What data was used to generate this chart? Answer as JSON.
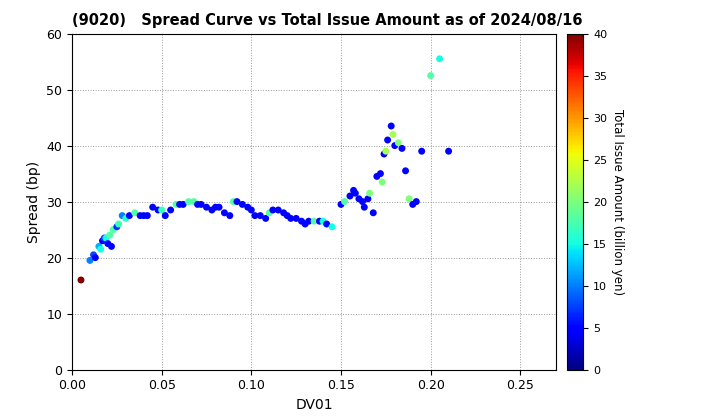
{
  "title": "(9020)   Spread Curve vs Total Issue Amount as of 2024/08/16",
  "xlabel": "DV01",
  "ylabel": "Spread (bp)",
  "colorbar_label": "Total Issue Amount (billion yen)",
  "xlim": [
    0,
    0.27
  ],
  "ylim": [
    0,
    60
  ],
  "xticks": [
    0.0,
    0.05,
    0.1,
    0.15,
    0.2,
    0.25
  ],
  "yticks": [
    0,
    10,
    20,
    30,
    40,
    50,
    60
  ],
  "colorbar_min": 0,
  "colorbar_max": 40,
  "colorbar_ticks": [
    0,
    5,
    10,
    15,
    20,
    25,
    30,
    35,
    40
  ],
  "scatter_data": [
    [
      0.005,
      16.0,
      40
    ],
    [
      0.01,
      19.5,
      10
    ],
    [
      0.012,
      20.5,
      8
    ],
    [
      0.013,
      20.0,
      5
    ],
    [
      0.015,
      22.0,
      12
    ],
    [
      0.016,
      21.5,
      15
    ],
    [
      0.017,
      23.0,
      5
    ],
    [
      0.018,
      23.5,
      8
    ],
    [
      0.019,
      23.5,
      15
    ],
    [
      0.02,
      22.5,
      5
    ],
    [
      0.021,
      24.0,
      18
    ],
    [
      0.022,
      22.0,
      5
    ],
    [
      0.023,
      25.0,
      18
    ],
    [
      0.025,
      25.5,
      7
    ],
    [
      0.026,
      26.0,
      17
    ],
    [
      0.028,
      27.5,
      10
    ],
    [
      0.03,
      27.0,
      16
    ],
    [
      0.032,
      27.5,
      5
    ],
    [
      0.035,
      28.0,
      18
    ],
    [
      0.038,
      27.5,
      5
    ],
    [
      0.04,
      27.5,
      5
    ],
    [
      0.042,
      27.5,
      5
    ],
    [
      0.045,
      29.0,
      5
    ],
    [
      0.048,
      28.5,
      5
    ],
    [
      0.05,
      28.5,
      17
    ],
    [
      0.052,
      27.5,
      5
    ],
    [
      0.055,
      28.5,
      5
    ],
    [
      0.058,
      29.5,
      18
    ],
    [
      0.06,
      29.5,
      5
    ],
    [
      0.062,
      29.5,
      5
    ],
    [
      0.065,
      30.0,
      18
    ],
    [
      0.068,
      30.0,
      18
    ],
    [
      0.07,
      29.5,
      5
    ],
    [
      0.072,
      29.5,
      5
    ],
    [
      0.075,
      29.0,
      5
    ],
    [
      0.078,
      28.5,
      5
    ],
    [
      0.08,
      29.0,
      5
    ],
    [
      0.082,
      29.0,
      5
    ],
    [
      0.085,
      28.0,
      5
    ],
    [
      0.088,
      27.5,
      5
    ],
    [
      0.09,
      30.0,
      18
    ],
    [
      0.092,
      30.0,
      5
    ],
    [
      0.095,
      29.5,
      5
    ],
    [
      0.098,
      29.0,
      5
    ],
    [
      0.1,
      28.5,
      5
    ],
    [
      0.102,
      27.5,
      5
    ],
    [
      0.105,
      27.5,
      5
    ],
    [
      0.108,
      27.0,
      5
    ],
    [
      0.11,
      28.0,
      18
    ],
    [
      0.112,
      28.5,
      5
    ],
    [
      0.115,
      28.5,
      5
    ],
    [
      0.118,
      28.0,
      5
    ],
    [
      0.12,
      27.5,
      5
    ],
    [
      0.122,
      27.0,
      5
    ],
    [
      0.125,
      27.0,
      5
    ],
    [
      0.128,
      26.5,
      5
    ],
    [
      0.13,
      26.0,
      5
    ],
    [
      0.132,
      26.5,
      5
    ],
    [
      0.135,
      26.5,
      18
    ],
    [
      0.138,
      26.5,
      5
    ],
    [
      0.14,
      26.5,
      15
    ],
    [
      0.142,
      26.0,
      5
    ],
    [
      0.145,
      25.5,
      15
    ],
    [
      0.15,
      29.5,
      5
    ],
    [
      0.152,
      30.0,
      18
    ],
    [
      0.155,
      31.0,
      5
    ],
    [
      0.157,
      32.0,
      5
    ],
    [
      0.158,
      31.5,
      5
    ],
    [
      0.16,
      30.5,
      5
    ],
    [
      0.162,
      30.0,
      5
    ],
    [
      0.163,
      29.0,
      5
    ],
    [
      0.165,
      30.5,
      5
    ],
    [
      0.166,
      31.5,
      20
    ],
    [
      0.168,
      28.0,
      5
    ],
    [
      0.17,
      34.5,
      5
    ],
    [
      0.172,
      35.0,
      5
    ],
    [
      0.173,
      33.5,
      20
    ],
    [
      0.174,
      38.5,
      5
    ],
    [
      0.175,
      39.0,
      22
    ],
    [
      0.176,
      41.0,
      5
    ],
    [
      0.178,
      43.5,
      5
    ],
    [
      0.179,
      42.0,
      22
    ],
    [
      0.18,
      40.0,
      5
    ],
    [
      0.182,
      40.5,
      20
    ],
    [
      0.184,
      39.5,
      5
    ],
    [
      0.186,
      35.5,
      5
    ],
    [
      0.188,
      30.5,
      20
    ],
    [
      0.19,
      29.5,
      5
    ],
    [
      0.192,
      30.0,
      5
    ],
    [
      0.195,
      39.0,
      5
    ],
    [
      0.2,
      52.5,
      18
    ],
    [
      0.205,
      55.5,
      15
    ],
    [
      0.21,
      39.0,
      5
    ]
  ]
}
